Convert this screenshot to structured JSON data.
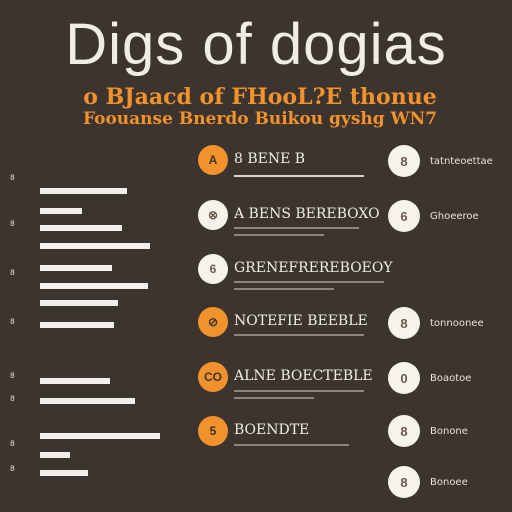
{
  "header": {
    "title": "Digs of dogias",
    "subtitle1": "o BJaacd of FHooL?E thonue",
    "subtitle2": "Foouanse Bnerdo Buikou gyshg WN7"
  },
  "left_chart": {
    "tick_labels": [
      "8",
      "8",
      "8",
      "8",
      "8",
      "8",
      "8",
      "8"
    ],
    "bars": [
      {
        "value": 87
      },
      {
        "value": 42
      },
      {
        "value": 82
      },
      {
        "value": 110
      },
      {
        "value": 72
      },
      {
        "value": 108
      },
      {
        "value": 78
      },
      {
        "value": 74
      },
      {
        "value": 70
      },
      {
        "value": 95
      },
      {
        "value": 120
      },
      {
        "value": 30
      },
      {
        "value": 48
      }
    ]
  },
  "rows": [
    {
      "icon": "A",
      "label": "8 BENE B",
      "style": "orange"
    },
    {
      "icon": "⊗",
      "label": "A BENS BEREBOXO",
      "style": "white"
    },
    {
      "icon": "6",
      "label": "GRENEFREREBOEOY",
      "style": "white"
    },
    {
      "icon": "⊘",
      "label": "NOTEFIE BEEBLE",
      "style": "orange"
    },
    {
      "icon": "CO",
      "label": "ALNE BOECTEBLE",
      "style": "orange"
    },
    {
      "icon": "5",
      "label": "BOENDTE",
      "style": "orange"
    }
  ],
  "right_items": [
    {
      "icon": "8",
      "label": "tatnteoettae"
    },
    {
      "icon": "6",
      "label": "Ghoeeroe"
    },
    {
      "icon": "",
      "label": ""
    },
    {
      "icon": "8",
      "label": "tonnoonee"
    },
    {
      "icon": "0",
      "label": "Boaotoe"
    },
    {
      "icon": "8",
      "label": "Bonone"
    },
    {
      "icon": "8",
      "label": "Bonoee"
    }
  ]
}
